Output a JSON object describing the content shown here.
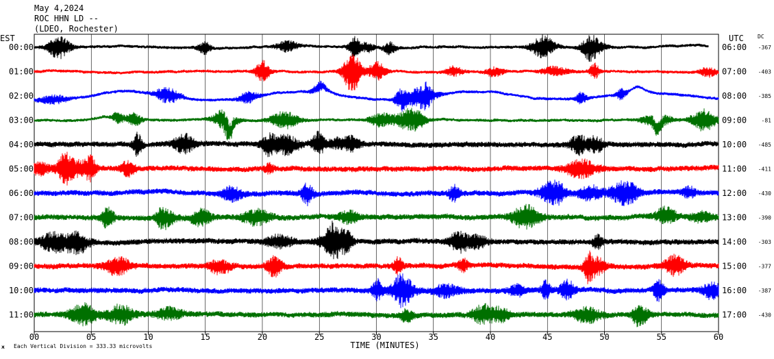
{
  "chart_data": {
    "type": "line",
    "title_lines": [
      "May 4,2024",
      "ROC HHN LD --",
      "(LDEO, Rochester)"
    ],
    "left_zone_label": "EST",
    "right_zone_label": "UTC",
    "dc_header": "DC",
    "xlabel": "TIME (MINUTES)",
    "x_ticks": [
      "00",
      "05",
      "10",
      "15",
      "20",
      "25",
      "30",
      "35",
      "40",
      "45",
      "50",
      "55",
      "60"
    ],
    "xlim": [
      0,
      60
    ],
    "footer_note": "Each Vertical Division =  333.33 microvolts",
    "footer_mark": "ж",
    "colors": [
      "#000000",
      "#ff0000",
      "#0000ff",
      "#007000"
    ],
    "rows": [
      {
        "est": "00:00",
        "utc": "06:00",
        "dc": "-367"
      },
      {
        "est": "01:00",
        "utc": "07:00",
        "dc": "-403"
      },
      {
        "est": "02:00",
        "utc": "08:00",
        "dc": "-385"
      },
      {
        "est": "03:00",
        "utc": "09:00",
        "dc": "-81"
      },
      {
        "est": "04:00",
        "utc": "10:00",
        "dc": "-485"
      },
      {
        "est": "05:00",
        "utc": "11:00",
        "dc": "-411"
      },
      {
        "est": "06:00",
        "utc": "12:00",
        "dc": "-430"
      },
      {
        "est": "07:00",
        "utc": "13:00",
        "dc": "-390"
      },
      {
        "est": "08:00",
        "utc": "14:00",
        "dc": "-303"
      },
      {
        "est": "09:00",
        "utc": "15:00",
        "dc": "-377"
      },
      {
        "est": "10:00",
        "utc": "16:00",
        "dc": "-387"
      },
      {
        "est": "11:00",
        "utc": "17:00",
        "dc": "-430"
      }
    ]
  }
}
